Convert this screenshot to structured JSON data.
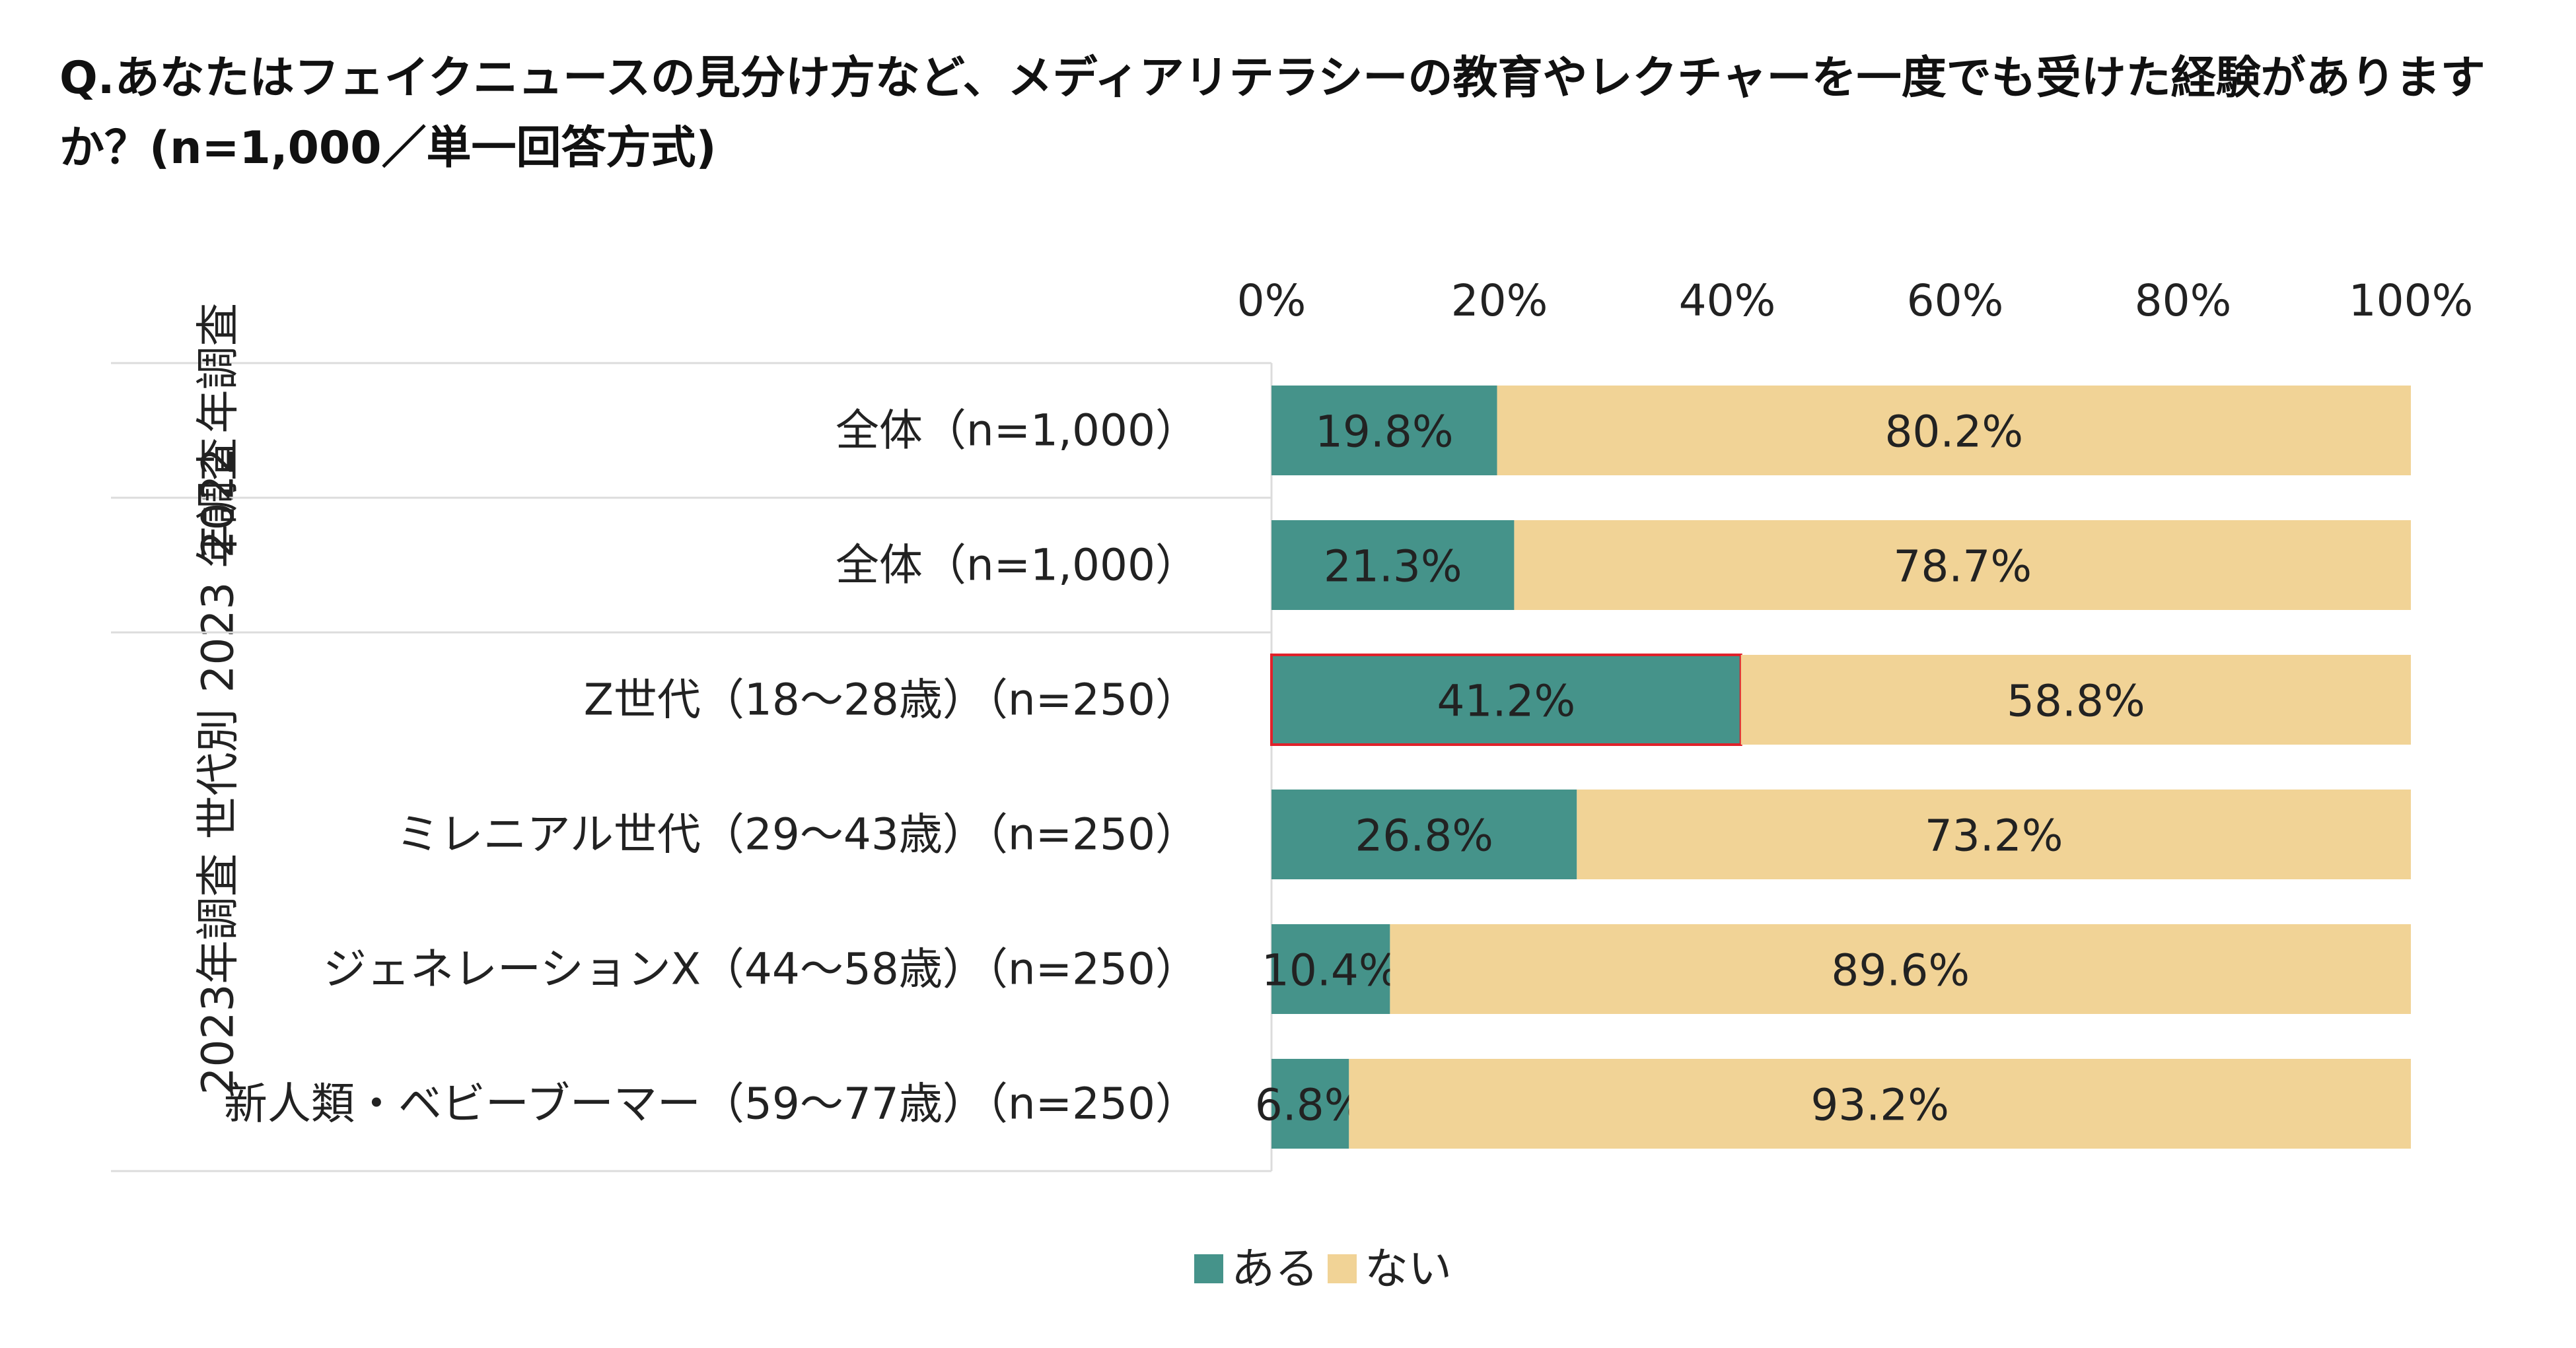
{
  "question": "Q.あなたはフェイクニュースの見分け方など、メディアリテラシーの教育やレクチャーを一度でも受けた経験がありますか？(n=1,000／単一回答方式)",
  "colors": {
    "aru": "#45938A",
    "nai": "#F1D396",
    "highlight_border": "#E0212A"
  },
  "chart_data": {
    "type": "bar",
    "orientation": "horizontal",
    "stacked": true,
    "percent_stacked": true,
    "title": "Q.あなたはフェイクニュースの見分け方など、メディアリテラシーの教育やレクチャーを一度でも受けた経験がありますか？(n=1,000／単一回答方式)",
    "xlim": [
      0,
      100
    ],
    "x_ticks": [
      "0%",
      "20%",
      "40%",
      "60%",
      "80%",
      "100%"
    ],
    "grid": false,
    "legend_position": "bottom",
    "groups": [
      {
        "label": "2022 年調査",
        "rows": [
          0
        ]
      },
      {
        "label": "2023 年調査",
        "rows": [
          1
        ]
      },
      {
        "label": "2023年調査 世代別",
        "rows": [
          2,
          3,
          4,
          5
        ]
      }
    ],
    "categories": [
      "全体（n=1,000）",
      "全体（n=1,000）",
      "Z世代（18～28歳）（n=250）",
      "ミレニアル世代（29～43歳）（n=250）",
      "ジェネレーションX（44～58歳）（n=250）",
      "新人類・ベビーブーマー（59～77歳）（n=250）"
    ],
    "highlighted": {
      "series": "ある",
      "category_index": 2
    },
    "series": [
      {
        "name": "ある",
        "values": [
          19.8,
          21.3,
          41.2,
          26.8,
          10.4,
          6.8
        ],
        "labels": [
          "19.8%",
          "21.3%",
          "41.2%",
          "26.8%",
          "10.4%",
          "6.8%"
        ]
      },
      {
        "name": "ない",
        "values": [
          80.2,
          78.7,
          58.8,
          73.2,
          89.6,
          93.2
        ],
        "labels": [
          "80.2%",
          "78.7%",
          "58.8%",
          "73.2%",
          "89.6%",
          "93.2%"
        ]
      }
    ]
  }
}
